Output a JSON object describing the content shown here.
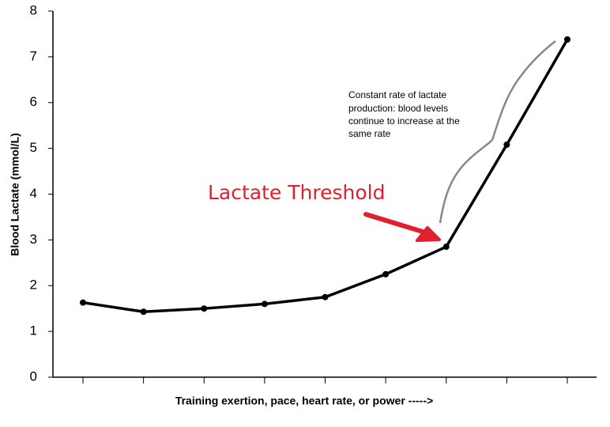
{
  "chart_data": {
    "type": "line",
    "x_label": "Training exertion, pace, heart rate, or power  ----->",
    "y_label": "Blood Lactate (mmol/L)",
    "categories": [
      null,
      null,
      null,
      null,
      null,
      null,
      null,
      null,
      null
    ],
    "values": [
      1.63,
      1.43,
      1.5,
      1.6,
      1.75,
      2.25,
      2.85,
      5.08,
      7.38
    ],
    "color": "#000000",
    "ylim": [
      0,
      8
    ],
    "yticks": [
      0,
      1,
      2,
      3,
      4,
      5,
      6,
      7,
      8
    ],
    "grid": false,
    "annotations": {
      "threshold": "Lactate Threshold",
      "note": [
        "Constant rate of lactate",
        "production: blood levels",
        "continue to increase at the",
        "same rate"
      ]
    }
  }
}
